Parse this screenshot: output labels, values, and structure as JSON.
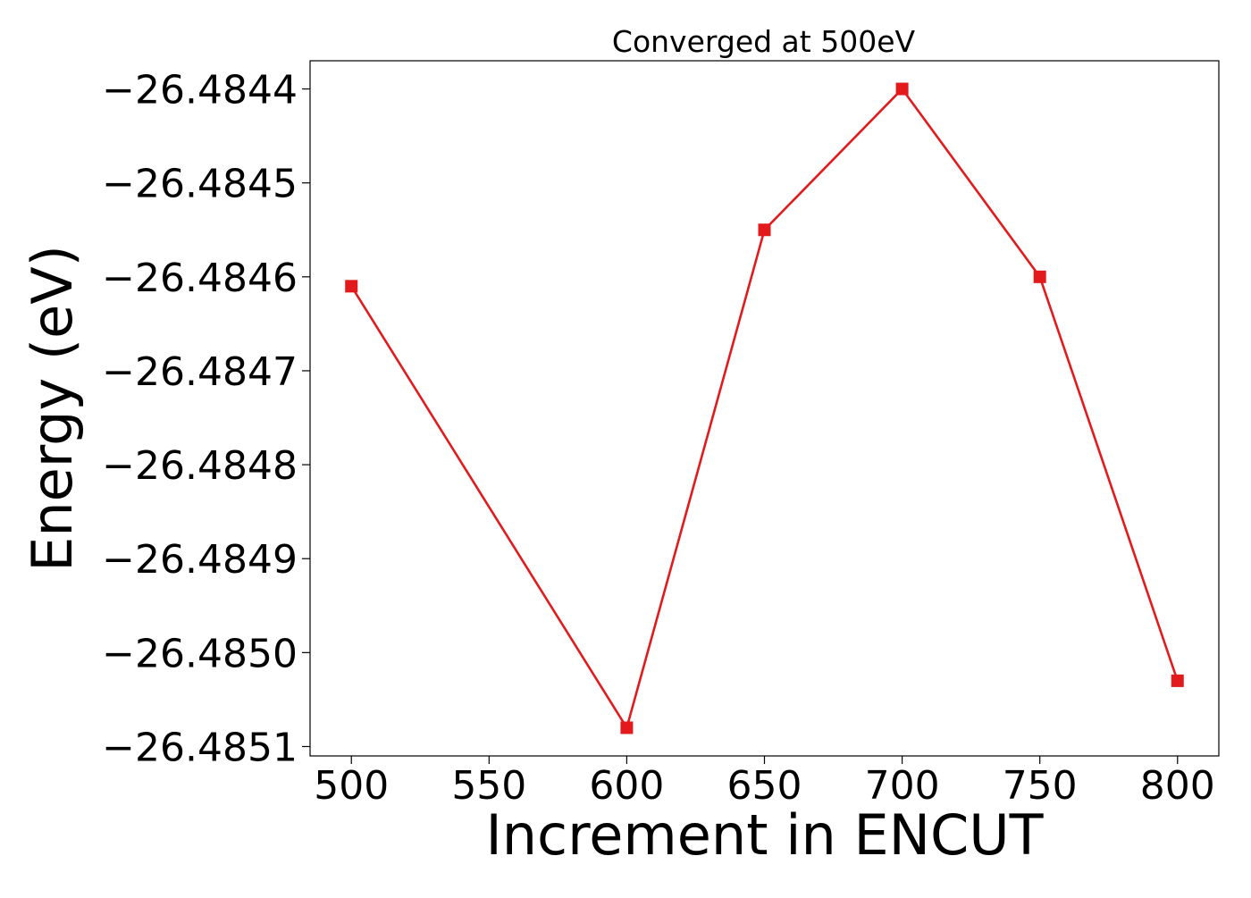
{
  "chart_data": {
    "type": "line",
    "title": "Converged at 500eV",
    "xlabel": "Increment in ENCUT",
    "ylabel": "Energy (eV)",
    "x": [
      500,
      600,
      650,
      700,
      750,
      800
    ],
    "x_ticks": [
      500,
      550,
      600,
      650,
      700,
      750,
      800
    ],
    "x_tick_labels": [
      "500",
      "550",
      "600",
      "650",
      "700",
      "750",
      "800"
    ],
    "xlim": [
      485,
      815
    ],
    "y_ticks": [
      -26.4844,
      -26.4845,
      -26.4846,
      -26.4847,
      -26.4848,
      -26.4849,
      -26.485,
      -26.4851
    ],
    "y_tick_labels": [
      "−26.4844",
      "−26.4845",
      "−26.4846",
      "−26.4847",
      "−26.4848",
      "−26.4849",
      "−26.4850",
      "−26.4851"
    ],
    "ylim": [
      -26.48511,
      -26.48437
    ],
    "grid": false,
    "series": [
      {
        "values": [
          -26.48461,
          -26.48508,
          -26.48455,
          -26.4844,
          -26.4846,
          -26.48503
        ],
        "color": "#e31a1c",
        "marker": "square"
      }
    ]
  }
}
